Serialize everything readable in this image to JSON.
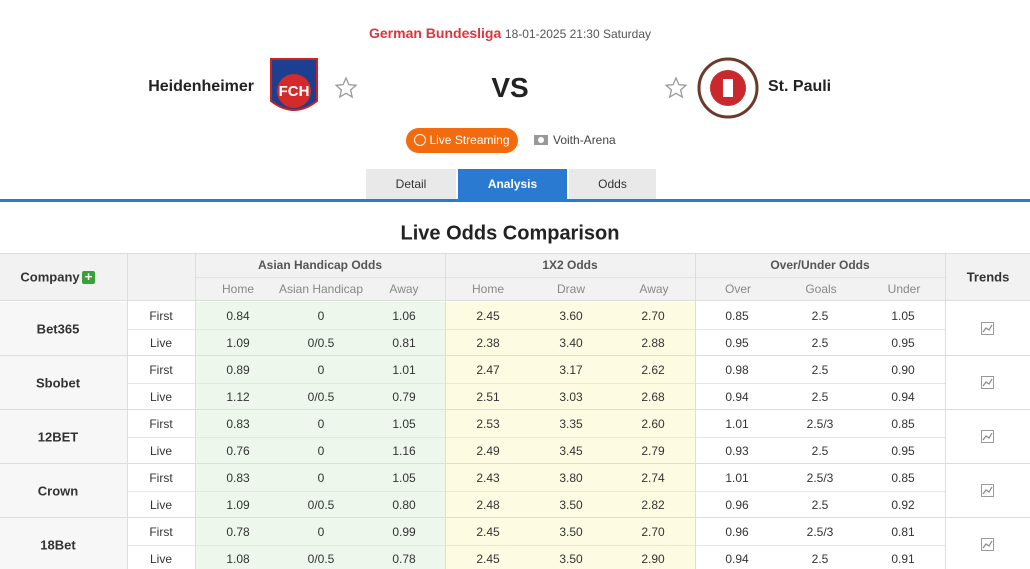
{
  "header": {
    "league": "German Bundesliga",
    "datetime": "18-01-2025 21:30 Saturday",
    "home_team": "Heidenheimer",
    "home_logo": "FCH",
    "away_team": "St. Pauli",
    "vs": "VS",
    "live_streaming": "Live Streaming",
    "venue": "Voith-Arena"
  },
  "tabs": [
    "Detail",
    "Analysis",
    "Odds"
  ],
  "section_title": "Live Odds Comparison",
  "table": {
    "company_header": "Company",
    "groups": [
      "Asian Handicap Odds",
      "1X2 Odds",
      "Over/Under Odds"
    ],
    "trends_header": "Trends",
    "subheaders": [
      [
        "Home",
        "Asian Handicap",
        "Away"
      ],
      [
        "Home",
        "Draw",
        "Away"
      ],
      [
        "Over",
        "Goals",
        "Under"
      ]
    ],
    "rows": [
      {
        "company": "Bet365",
        "lines": [
          {
            "stage": "First",
            "odds": [
              "0.84",
              "0",
              "1.06",
              "2.45",
              "3.60",
              "2.70",
              "0.85",
              "2.5",
              "1.05"
            ]
          },
          {
            "stage": "Live",
            "odds": [
              "1.09",
              "0/0.5",
              "0.81",
              "2.38",
              "3.40",
              "2.88",
              "0.95",
              "2.5",
              "0.95"
            ]
          }
        ]
      },
      {
        "company": "Sbobet",
        "lines": [
          {
            "stage": "First",
            "odds": [
              "0.89",
              "0",
              "1.01",
              "2.47",
              "3.17",
              "2.62",
              "0.98",
              "2.5",
              "0.90"
            ]
          },
          {
            "stage": "Live",
            "odds": [
              "1.12",
              "0/0.5",
              "0.79",
              "2.51",
              "3.03",
              "2.68",
              "0.94",
              "2.5",
              "0.94"
            ]
          }
        ]
      },
      {
        "company": "12BET",
        "lines": [
          {
            "stage": "First",
            "odds": [
              "0.83",
              "0",
              "1.05",
              "2.53",
              "3.35",
              "2.60",
              "1.01",
              "2.5/3",
              "0.85"
            ]
          },
          {
            "stage": "Live",
            "odds": [
              "0.76",
              "0",
              "1.16",
              "2.49",
              "3.45",
              "2.79",
              "0.93",
              "2.5",
              "0.95"
            ]
          }
        ]
      },
      {
        "company": "Crown",
        "lines": [
          {
            "stage": "First",
            "odds": [
              "0.83",
              "0",
              "1.05",
              "2.43",
              "3.80",
              "2.74",
              "1.01",
              "2.5/3",
              "0.85"
            ]
          },
          {
            "stage": "Live",
            "odds": [
              "1.09",
              "0/0.5",
              "0.80",
              "2.48",
              "3.50",
              "2.82",
              "0.96",
              "2.5",
              "0.92"
            ]
          }
        ]
      },
      {
        "company": "18Bet",
        "lines": [
          {
            "stage": "First",
            "odds": [
              "0.78",
              "0",
              "0.99",
              "2.45",
              "3.50",
              "2.70",
              "0.96",
              "2.5/3",
              "0.81"
            ]
          },
          {
            "stage": "Live",
            "odds": [
              "1.08",
              "0/0.5",
              "0.78",
              "2.45",
              "3.50",
              "2.90",
              "0.94",
              "2.5",
              "0.91"
            ]
          }
        ]
      }
    ]
  }
}
